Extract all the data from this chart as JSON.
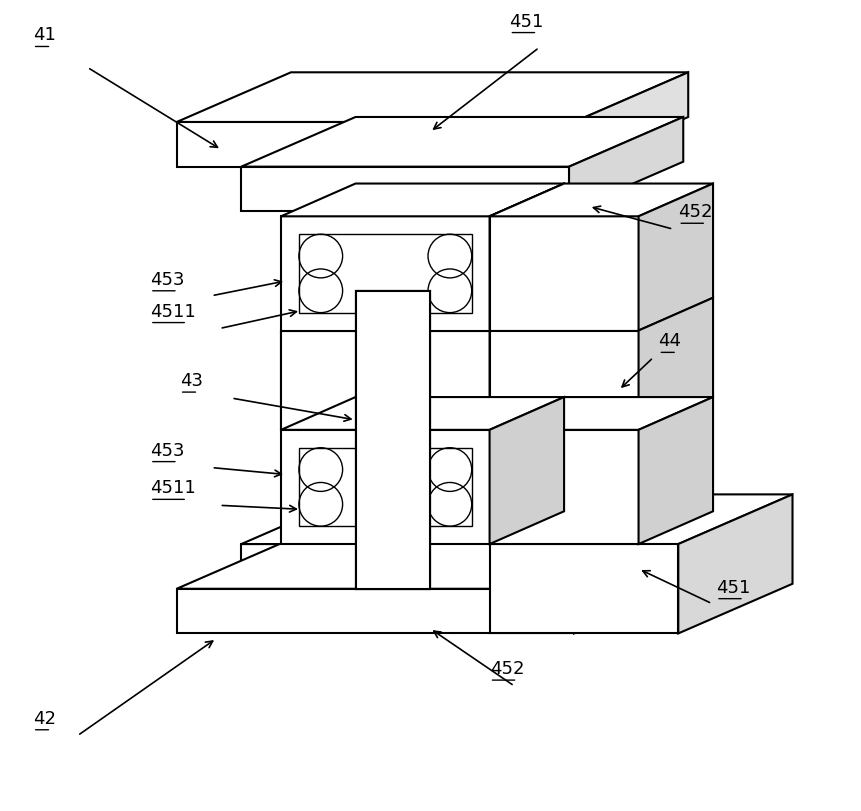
{
  "bg_color": "#ffffff",
  "lc": "#000000",
  "lw": 1.5,
  "lw_thin": 1.0,
  "fig_w": 8.62,
  "fig_h": 8.11,
  "dpi": 100
}
